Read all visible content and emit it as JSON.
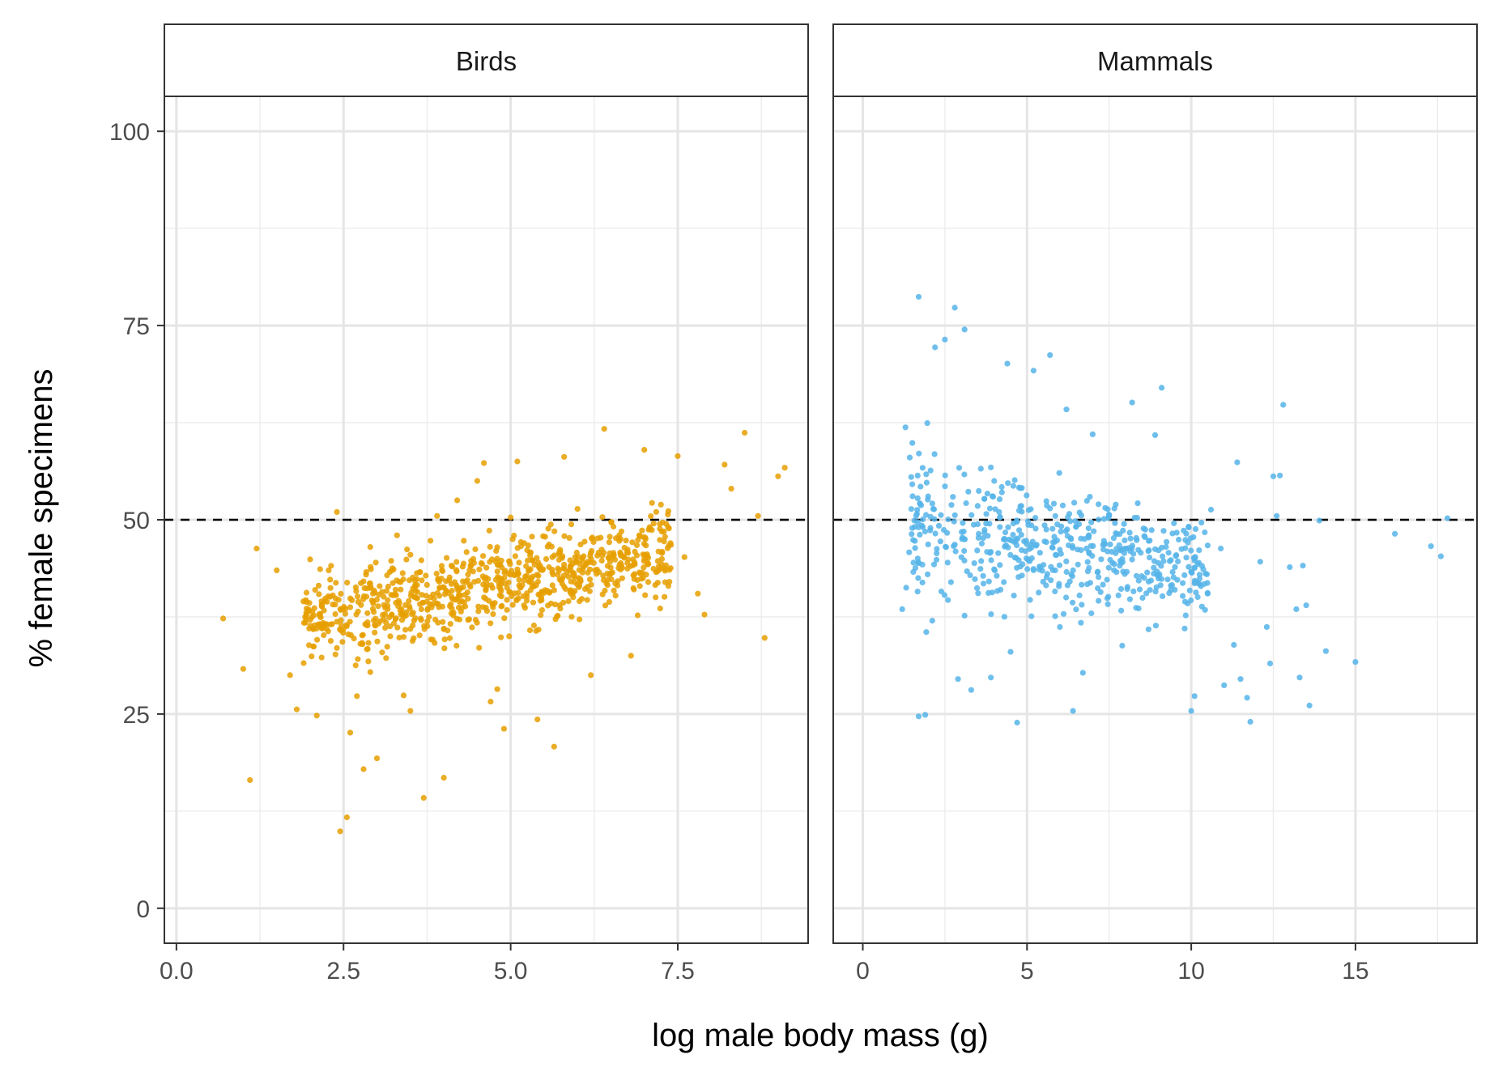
{
  "chart_data": {
    "type": "scatter",
    "xlabel": "log male body mass (g)",
    "ylabel": "% female specimens",
    "ylim": [
      -4.5,
      104.5
    ],
    "yticks": [
      0,
      25,
      50,
      75,
      100
    ],
    "yticklabels": [
      "0",
      "25",
      "50",
      "75",
      "100"
    ],
    "reference_line": {
      "y": 50,
      "style": "dashed",
      "color": "#000000"
    },
    "grid": true,
    "theme": "bw",
    "point_alpha": 0.85,
    "panels": [
      {
        "name": "Birds",
        "color": "#E69F00",
        "xlim": [
          -0.18,
          9.45
        ],
        "xticks": [
          0,
          2.5,
          5,
          7.5
        ],
        "xticklabels": [
          "0.0",
          "2.5",
          "5.0",
          "7.5"
        ],
        "points": [
          [
            0.7,
            37.3
          ],
          [
            1.1,
            16.5
          ],
          [
            1.0,
            30.8
          ],
          [
            1.2,
            46.3
          ],
          [
            1.5,
            43.5
          ],
          [
            1.7,
            30.0
          ],
          [
            1.9,
            39.5
          ],
          [
            2.0,
            44.9
          ],
          [
            2.1,
            24.8
          ],
          [
            2.2,
            36.2
          ],
          [
            2.3,
            42.3
          ],
          [
            2.4,
            51.0
          ],
          [
            2.4,
            33.5
          ],
          [
            2.45,
            9.9
          ],
          [
            2.55,
            11.7
          ],
          [
            2.6,
            22.6
          ],
          [
            2.7,
            27.3
          ],
          [
            2.8,
            17.9
          ],
          [
            2.9,
            30.4
          ],
          [
            3.0,
            19.3
          ],
          [
            3.1,
            40.1
          ],
          [
            3.2,
            35.0
          ],
          [
            3.3,
            48.0
          ],
          [
            3.4,
            27.4
          ],
          [
            3.5,
            25.4
          ],
          [
            3.6,
            41.6
          ],
          [
            3.7,
            14.2
          ],
          [
            3.8,
            47.3
          ],
          [
            3.9,
            50.5
          ],
          [
            4.0,
            16.8
          ],
          [
            4.1,
            36.6
          ],
          [
            4.2,
            52.5
          ],
          [
            4.3,
            47.3
          ],
          [
            4.4,
            44.1
          ],
          [
            4.5,
            55.0
          ],
          [
            4.6,
            57.3
          ],
          [
            4.7,
            26.6
          ],
          [
            4.8,
            45.0
          ],
          [
            4.9,
            23.1
          ],
          [
            5.0,
            50.3
          ],
          [
            5.1,
            57.5
          ],
          [
            5.2,
            39.0
          ],
          [
            5.3,
            45.8
          ],
          [
            5.4,
            24.3
          ],
          [
            5.6,
            49.4
          ],
          [
            5.65,
            20.8
          ],
          [
            5.8,
            58.1
          ],
          [
            6.0,
            51.4
          ],
          [
            6.2,
            30.0
          ],
          [
            6.3,
            47.6
          ],
          [
            6.4,
            61.7
          ],
          [
            6.5,
            43.1
          ],
          [
            6.7,
            45.1
          ],
          [
            6.9,
            37.7
          ],
          [
            7.0,
            59.0
          ],
          [
            7.2,
            41.9
          ],
          [
            7.5,
            58.2
          ],
          [
            7.6,
            45.2
          ],
          [
            7.8,
            40.5
          ],
          [
            7.9,
            37.8
          ],
          [
            8.2,
            57.1
          ],
          [
            8.3,
            54.0
          ],
          [
            8.5,
            61.2
          ],
          [
            8.7,
            50.5
          ],
          [
            8.8,
            34.8
          ],
          [
            9.1,
            56.7
          ],
          [
            9.0,
            55.6
          ],
          [
            6.8,
            32.5
          ],
          [
            4.8,
            28.2
          ],
          [
            3.5,
            45.5
          ],
          [
            2.9,
            46.5
          ],
          [
            1.8,
            25.6
          ]
        ],
        "cluster": {
          "xmin": 1.9,
          "xmax": 7.4,
          "ymin_at_xmin": 28,
          "ymax_at_xmin": 46,
          "ymin_at_xmax": 38,
          "ymax_at_xmax": 54,
          "count": 820,
          "seed": 7
        }
      },
      {
        "name": "Mammals",
        "color": "#56B4E9",
        "xlim": [
          -0.9,
          18.7
        ],
        "xticks": [
          0,
          5,
          10,
          15
        ],
        "xticklabels": [
          "0",
          "5",
          "10",
          "15"
        ],
        "points": [
          [
            1.2,
            38.5
          ],
          [
            1.3,
            61.9
          ],
          [
            1.7,
            78.7
          ],
          [
            1.7,
            24.7
          ],
          [
            1.9,
            24.9
          ],
          [
            2.2,
            72.2
          ],
          [
            2.5,
            73.2
          ],
          [
            2.8,
            77.3
          ],
          [
            2.9,
            29.5
          ],
          [
            3.1,
            74.5
          ],
          [
            3.3,
            28.1
          ],
          [
            3.9,
            29.7
          ],
          [
            4.0,
            55.0
          ],
          [
            4.4,
            70.1
          ],
          [
            4.7,
            23.9
          ],
          [
            5.2,
            69.2
          ],
          [
            5.5,
            44.2
          ],
          [
            5.7,
            71.2
          ],
          [
            6.2,
            64.2
          ],
          [
            6.4,
            25.4
          ],
          [
            6.7,
            30.3
          ],
          [
            7.0,
            61.0
          ],
          [
            7.7,
            45.7
          ],
          [
            8.2,
            65.1
          ],
          [
            8.7,
            35.9
          ],
          [
            8.9,
            60.9
          ],
          [
            9.1,
            67.0
          ],
          [
            9.5,
            41.0
          ],
          [
            10.0,
            43.3
          ],
          [
            10.0,
            25.4
          ],
          [
            10.1,
            27.3
          ],
          [
            10.2,
            44.3
          ],
          [
            10.6,
            51.3
          ],
          [
            10.9,
            46.3
          ],
          [
            11.0,
            28.7
          ],
          [
            11.3,
            33.9
          ],
          [
            11.4,
            57.4
          ],
          [
            11.5,
            29.5
          ],
          [
            11.7,
            27.1
          ],
          [
            11.8,
            24.0
          ],
          [
            12.1,
            44.6
          ],
          [
            12.3,
            36.2
          ],
          [
            12.4,
            31.5
          ],
          [
            12.5,
            55.6
          ],
          [
            12.6,
            50.5
          ],
          [
            12.7,
            55.7
          ],
          [
            12.8,
            64.8
          ],
          [
            13.0,
            43.9
          ],
          [
            13.2,
            38.5
          ],
          [
            13.3,
            29.7
          ],
          [
            13.5,
            39.0
          ],
          [
            13.4,
            44.1
          ],
          [
            13.6,
            26.1
          ],
          [
            13.9,
            49.9
          ],
          [
            14.1,
            33.1
          ],
          [
            15.0,
            31.7
          ],
          [
            17.3,
            46.6
          ],
          [
            17.6,
            45.3
          ],
          [
            17.8,
            50.2
          ],
          [
            16.2,
            48.2
          ],
          [
            9.8,
            36.0
          ],
          [
            7.9,
            33.8
          ],
          [
            6.0,
            36.2
          ],
          [
            4.5,
            33.0
          ]
        ],
        "cluster": {
          "xmin": 1.3,
          "xmax": 10.5,
          "ymin_at_xmin": 34,
          "ymax_at_xmin": 64,
          "ymin_at_xmax": 35,
          "ymax_at_xmax": 52,
          "count": 540,
          "seed": 11
        }
      }
    ]
  }
}
